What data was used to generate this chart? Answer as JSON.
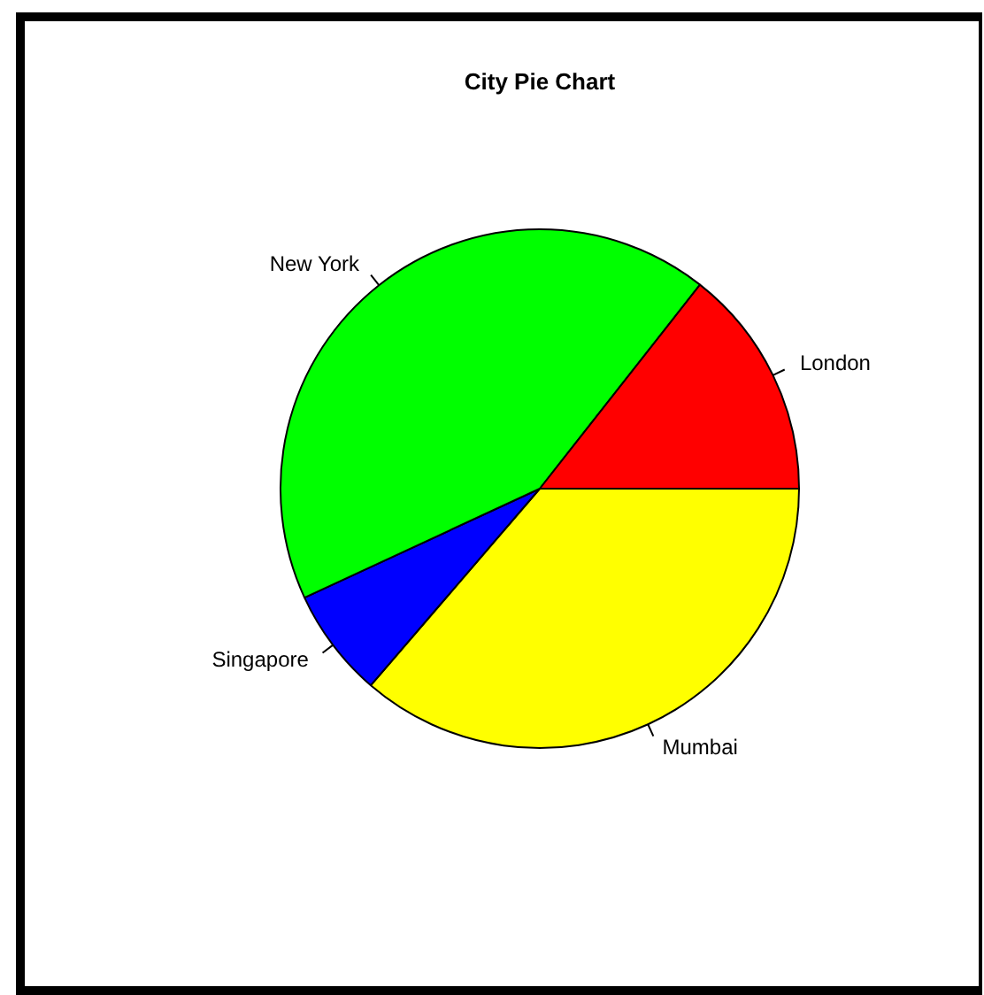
{
  "chart_data": {
    "type": "pie",
    "title": "City Pie Chart",
    "categories": [
      "London",
      "New York",
      "Singapore",
      "Mumbai"
    ],
    "values": [
      14.4,
      42.5,
      6.8,
      36.3
    ],
    "colors": [
      "#ff0000",
      "#00ff00",
      "#0000ff",
      "#ffff00"
    ],
    "legend": false
  }
}
